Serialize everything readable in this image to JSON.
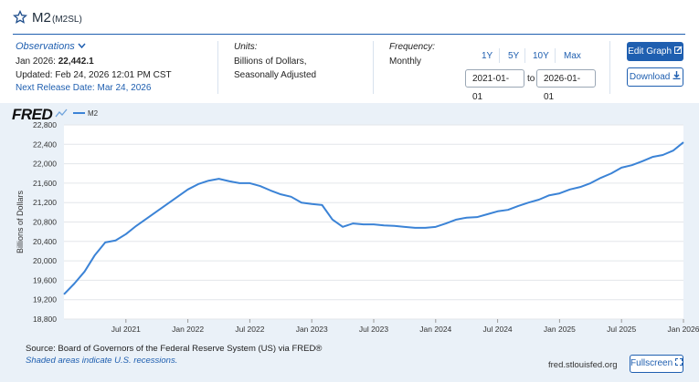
{
  "header": {
    "title": "M2",
    "series_id": "(M2SL)"
  },
  "observations": {
    "label": "Observations",
    "date": "Jan 2026:",
    "value": "22,442.1",
    "updated": "Updated: Feb 24, 2026 12:01 PM CST",
    "next_release": "Next Release Date: Mar 24, 2026"
  },
  "units": {
    "label": "Units:",
    "lines": [
      "Billions of Dollars,",
      "Seasonally Adjusted"
    ]
  },
  "frequency": {
    "label": "Frequency:",
    "value": "Monthly"
  },
  "range_buttons": [
    "1Y",
    "5Y",
    "10Y",
    "Max"
  ],
  "date_range": {
    "start": "2021-01-01",
    "to": "to",
    "end": "2026-01-01"
  },
  "buttons": {
    "edit": "Edit Graph",
    "download": "Download",
    "fullscreen": "Fullscreen"
  },
  "logo": "FRED",
  "footer": {
    "source": "Source: Board of Governors of the Federal Reserve System (US) via FRED®",
    "note": "Shaded areas indicate U.S. recessions.",
    "site": "fred.stlouisfed.org"
  },
  "chart_data": {
    "type": "line",
    "y_label": "Billions of Dollars",
    "x": [
      "2021-01",
      "2021-02",
      "2021-03",
      "2021-04",
      "2021-05",
      "2021-06",
      "2021-07",
      "2021-08",
      "2021-09",
      "2021-10",
      "2021-11",
      "2021-12",
      "2022-01",
      "2022-02",
      "2022-03",
      "2022-04",
      "2022-05",
      "2022-06",
      "2022-07",
      "2022-08",
      "2022-09",
      "2022-10",
      "2022-11",
      "2022-12",
      "2023-01",
      "2023-02",
      "2023-03",
      "2023-04",
      "2023-05",
      "2023-06",
      "2023-07",
      "2023-08",
      "2023-09",
      "2023-10",
      "2023-11",
      "2023-12",
      "2024-01",
      "2024-02",
      "2024-03",
      "2024-04",
      "2024-05",
      "2024-06",
      "2024-07",
      "2024-08",
      "2024-09",
      "2024-10",
      "2024-11",
      "2024-12",
      "2025-01",
      "2025-02",
      "2025-03",
      "2025-04",
      "2025-05",
      "2025-06",
      "2025-07",
      "2025-08",
      "2025-09",
      "2025-10",
      "2025-11",
      "2025-12",
      "2026-01"
    ],
    "series": [
      {
        "name": "M2",
        "color": "#3b83d6",
        "values": [
          19310,
          19530,
          19780,
          20120,
          20380,
          20420,
          20550,
          20720,
          20870,
          21020,
          21170,
          21320,
          21470,
          21580,
          21650,
          21690,
          21640,
          21600,
          21600,
          21540,
          21450,
          21370,
          21320,
          21200,
          21170,
          21150,
          20850,
          20700,
          20770,
          20750,
          20750,
          20730,
          20720,
          20700,
          20680,
          20680,
          20700,
          20770,
          20850,
          20890,
          20900,
          20960,
          21020,
          21050,
          21130,
          21200,
          21260,
          21350,
          21390,
          21470,
          21520,
          21600,
          21710,
          21800,
          21920,
          21970,
          22050,
          22140,
          22180,
          22270,
          22442.1
        ]
      }
    ],
    "xlim": [
      "2021-01",
      "2026-01"
    ],
    "xticks": [
      {
        "value": "2021-07",
        "label": "Jul 2021"
      },
      {
        "value": "2022-01",
        "label": "Jan 2022"
      },
      {
        "value": "2022-07",
        "label": "Jul 2022"
      },
      {
        "value": "2023-01",
        "label": "Jan 2023"
      },
      {
        "value": "2023-07",
        "label": "Jul 2023"
      },
      {
        "value": "2024-01",
        "label": "Jan 2024"
      },
      {
        "value": "2024-07",
        "label": "Jul 2024"
      },
      {
        "value": "2025-01",
        "label": "Jan 2025"
      },
      {
        "value": "2025-07",
        "label": "Jul 2025"
      },
      {
        "value": "2026-01",
        "label": "Jan 2026"
      }
    ],
    "ylim": [
      18800,
      22800
    ],
    "yticks": [
      {
        "value": 18800,
        "label": "18,800"
      },
      {
        "value": 19200,
        "label": "19,200"
      },
      {
        "value": 19600,
        "label": "19,600"
      },
      {
        "value": 20000,
        "label": "20,000"
      },
      {
        "value": 20400,
        "label": "20,400"
      },
      {
        "value": 20800,
        "label": "20,800"
      },
      {
        "value": 21200,
        "label": "21,200"
      },
      {
        "value": 21600,
        "label": "21,600"
      },
      {
        "value": 22000,
        "label": "22,000"
      },
      {
        "value": 22400,
        "label": "22,400"
      },
      {
        "value": 22800,
        "label": "22,800"
      }
    ],
    "grid": true
  }
}
